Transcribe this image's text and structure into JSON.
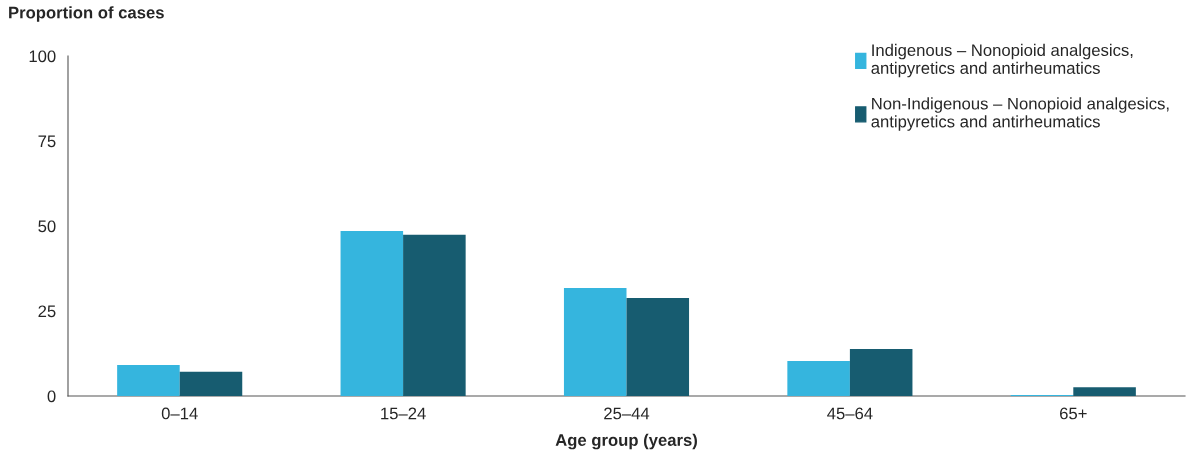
{
  "chart_data": {
    "type": "bar",
    "ylabel": "Proportion of cases",
    "xlabel": "Age group (years)",
    "categories": [
      "0–14",
      "15–24",
      "25–44",
      "45–64",
      "65+"
    ],
    "series": [
      {
        "name": "Indigenous – Nonopioid analgesics, antipyretics and antirheumatics",
        "color": "#35b5de",
        "values": [
          9.1,
          48.5,
          31.8,
          10.3,
          0.3
        ]
      },
      {
        "name": "Non-Indigenous – Nonopioid analgesics, antipyretics and antirheumatics",
        "color": "#175c70",
        "values": [
          7.1,
          47.4,
          28.8,
          13.8,
          2.6
        ]
      }
    ],
    "ylim": [
      0,
      100
    ],
    "yticks": [
      0,
      25,
      50,
      75,
      100
    ],
    "grid": false,
    "legend": "top right"
  }
}
